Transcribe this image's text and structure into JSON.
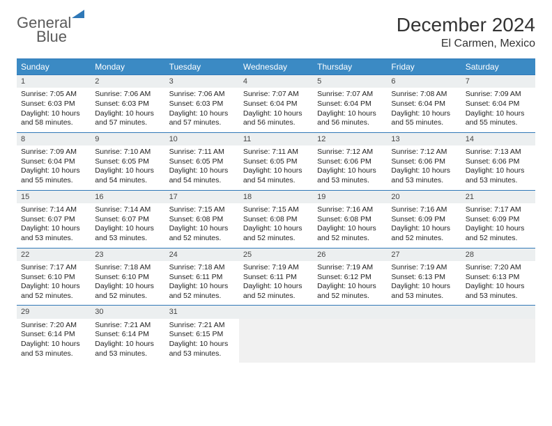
{
  "brand": {
    "part1": "General",
    "part2": "Blue"
  },
  "title": "December 2024",
  "location": "El Carmen, Mexico",
  "colors": {
    "header_bg": "#3b8ac4",
    "rule": "#2f78b7",
    "daynum_bg": "#eceff0",
    "text": "#222222",
    "logo_gray": "#5a5a5a"
  },
  "dayHeaders": [
    "Sunday",
    "Monday",
    "Tuesday",
    "Wednesday",
    "Thursday",
    "Friday",
    "Saturday"
  ],
  "days": [
    {
      "n": 1,
      "sr": "7:05 AM",
      "ss": "6:03 PM",
      "dh": 10,
      "dm": 58
    },
    {
      "n": 2,
      "sr": "7:06 AM",
      "ss": "6:03 PM",
      "dh": 10,
      "dm": 57
    },
    {
      "n": 3,
      "sr": "7:06 AM",
      "ss": "6:03 PM",
      "dh": 10,
      "dm": 57
    },
    {
      "n": 4,
      "sr": "7:07 AM",
      "ss": "6:04 PM",
      "dh": 10,
      "dm": 56
    },
    {
      "n": 5,
      "sr": "7:07 AM",
      "ss": "6:04 PM",
      "dh": 10,
      "dm": 56
    },
    {
      "n": 6,
      "sr": "7:08 AM",
      "ss": "6:04 PM",
      "dh": 10,
      "dm": 55
    },
    {
      "n": 7,
      "sr": "7:09 AM",
      "ss": "6:04 PM",
      "dh": 10,
      "dm": 55
    },
    {
      "n": 8,
      "sr": "7:09 AM",
      "ss": "6:04 PM",
      "dh": 10,
      "dm": 55
    },
    {
      "n": 9,
      "sr": "7:10 AM",
      "ss": "6:05 PM",
      "dh": 10,
      "dm": 54
    },
    {
      "n": 10,
      "sr": "7:11 AM",
      "ss": "6:05 PM",
      "dh": 10,
      "dm": 54
    },
    {
      "n": 11,
      "sr": "7:11 AM",
      "ss": "6:05 PM",
      "dh": 10,
      "dm": 54
    },
    {
      "n": 12,
      "sr": "7:12 AM",
      "ss": "6:06 PM",
      "dh": 10,
      "dm": 53
    },
    {
      "n": 13,
      "sr": "7:12 AM",
      "ss": "6:06 PM",
      "dh": 10,
      "dm": 53
    },
    {
      "n": 14,
      "sr": "7:13 AM",
      "ss": "6:06 PM",
      "dh": 10,
      "dm": 53
    },
    {
      "n": 15,
      "sr": "7:14 AM",
      "ss": "6:07 PM",
      "dh": 10,
      "dm": 53
    },
    {
      "n": 16,
      "sr": "7:14 AM",
      "ss": "6:07 PM",
      "dh": 10,
      "dm": 53
    },
    {
      "n": 17,
      "sr": "7:15 AM",
      "ss": "6:08 PM",
      "dh": 10,
      "dm": 52
    },
    {
      "n": 18,
      "sr": "7:15 AM",
      "ss": "6:08 PM",
      "dh": 10,
      "dm": 52
    },
    {
      "n": 19,
      "sr": "7:16 AM",
      "ss": "6:08 PM",
      "dh": 10,
      "dm": 52
    },
    {
      "n": 20,
      "sr": "7:16 AM",
      "ss": "6:09 PM",
      "dh": 10,
      "dm": 52
    },
    {
      "n": 21,
      "sr": "7:17 AM",
      "ss": "6:09 PM",
      "dh": 10,
      "dm": 52
    },
    {
      "n": 22,
      "sr": "7:17 AM",
      "ss": "6:10 PM",
      "dh": 10,
      "dm": 52
    },
    {
      "n": 23,
      "sr": "7:18 AM",
      "ss": "6:10 PM",
      "dh": 10,
      "dm": 52
    },
    {
      "n": 24,
      "sr": "7:18 AM",
      "ss": "6:11 PM",
      "dh": 10,
      "dm": 52
    },
    {
      "n": 25,
      "sr": "7:19 AM",
      "ss": "6:11 PM",
      "dh": 10,
      "dm": 52
    },
    {
      "n": 26,
      "sr": "7:19 AM",
      "ss": "6:12 PM",
      "dh": 10,
      "dm": 52
    },
    {
      "n": 27,
      "sr": "7:19 AM",
      "ss": "6:13 PM",
      "dh": 10,
      "dm": 53
    },
    {
      "n": 28,
      "sr": "7:20 AM",
      "ss": "6:13 PM",
      "dh": 10,
      "dm": 53
    },
    {
      "n": 29,
      "sr": "7:20 AM",
      "ss": "6:14 PM",
      "dh": 10,
      "dm": 53
    },
    {
      "n": 30,
      "sr": "7:21 AM",
      "ss": "6:14 PM",
      "dh": 10,
      "dm": 53
    },
    {
      "n": 31,
      "sr": "7:21 AM",
      "ss": "6:15 PM",
      "dh": 10,
      "dm": 53
    }
  ],
  "labels": {
    "sunrise": "Sunrise:",
    "sunset": "Sunset:",
    "daylight_prefix": "Daylight:",
    "hours_word": "hours",
    "and_word": "and",
    "minutes_word": "minutes."
  }
}
